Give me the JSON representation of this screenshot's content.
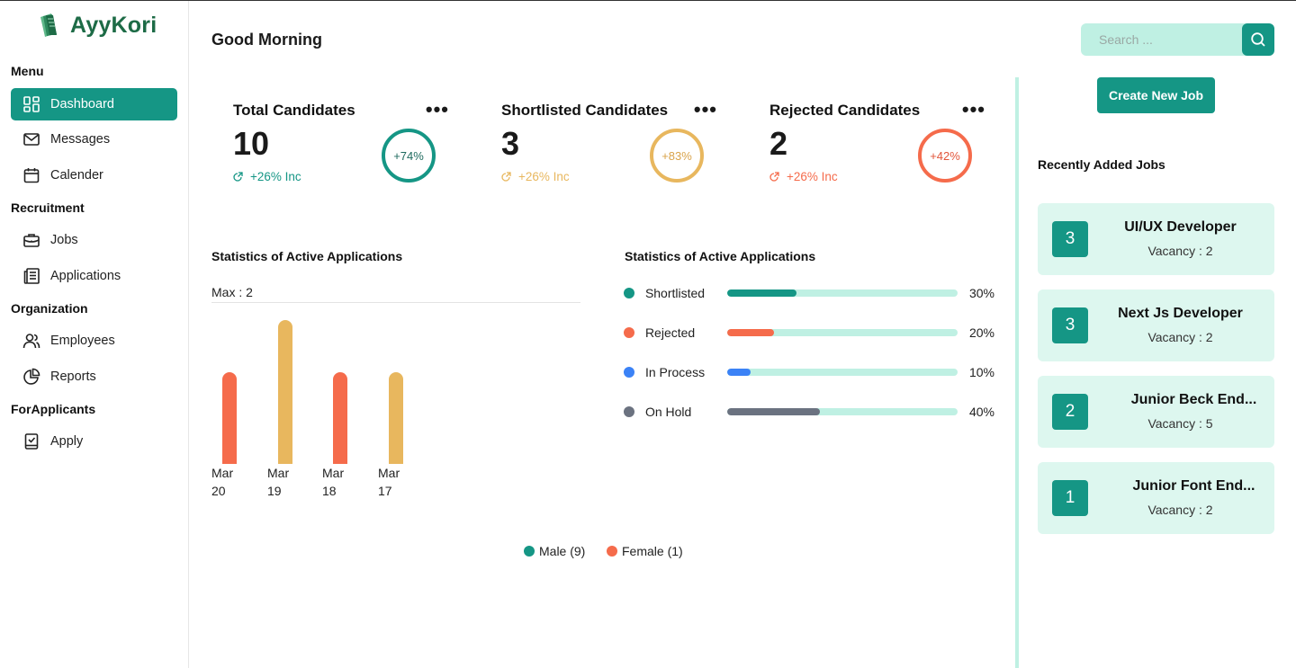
{
  "brand": {
    "name": "AyyKori"
  },
  "sidebar": {
    "sections": [
      {
        "title": "Menu"
      },
      {
        "title": "Recruitment"
      },
      {
        "title": "Organization"
      },
      {
        "title": "ForApplicants"
      }
    ],
    "items": [
      {
        "label": "Dashboard",
        "icon": "dashboard-icon",
        "active": true
      },
      {
        "label": "Messages",
        "icon": "mail-icon"
      },
      {
        "label": "Calender",
        "icon": "calendar-icon"
      },
      {
        "label": "Jobs",
        "icon": "briefcase-icon"
      },
      {
        "label": "Applications",
        "icon": "document-icon"
      },
      {
        "label": "Employees",
        "icon": "users-icon"
      },
      {
        "label": "Reports",
        "icon": "pie-chart-icon"
      },
      {
        "label": "Apply",
        "icon": "checkbook-icon"
      }
    ]
  },
  "header": {
    "greeting": "Good Morning",
    "search_placeholder": "Search ..."
  },
  "stats": [
    {
      "title": "Total Candidates",
      "value": "10",
      "inc": "+26% Inc",
      "ring": "+74%",
      "color": "#159685"
    },
    {
      "title": "Shortlisted Candidates",
      "value": "3",
      "inc": "+26% Inc",
      "ring": "+83%",
      "color": "#e8b75e"
    },
    {
      "title": "Rejected Candidates",
      "value": "2",
      "inc": "+26% Inc",
      "ring": "+42%",
      "color": "#f56b4b"
    }
  ],
  "gender_chart": {
    "title": "Statistics of Active Applications",
    "max_label": "Max : 2",
    "legend": [
      {
        "label": "Male (9)",
        "color": "#159685"
      },
      {
        "label": "Female (1)",
        "color": "#f56b4b"
      }
    ]
  },
  "status_chart": {
    "title": "Statistics of Active Applications",
    "rows": [
      {
        "label": "Shortlisted",
        "percent_label": "30%",
        "color": "#159685"
      },
      {
        "label": "Rejected",
        "percent_label": "20%",
        "color": "#f56b4b"
      },
      {
        "label": "In Process",
        "percent_label": "10%",
        "color": "#3b82f6"
      },
      {
        "label": "On Hold",
        "percent_label": "40%",
        "color": "#6b7280"
      }
    ]
  },
  "chart_data": [
    {
      "type": "bar",
      "title": "Statistics of Active Applications",
      "categories": [
        "Mar 20",
        "Mar 19",
        "Mar 18",
        "Mar 17"
      ],
      "values": [
        1.28,
        2.0,
        1.28,
        1.28
      ],
      "colors": [
        "#f56b4b",
        "#e8b75e",
        "#f56b4b",
        "#e8b75e"
      ],
      "ylim": [
        0,
        2
      ]
    },
    {
      "type": "bar",
      "title": "Statistics of Active Applications",
      "categories": [
        "Shortlisted",
        "Rejected",
        "In Process",
        "On Hold"
      ],
      "values": [
        30,
        20,
        10,
        40
      ],
      "ylim": [
        0,
        100
      ]
    }
  ],
  "right_panel": {
    "create_label": "Create New Job",
    "recent_title": "Recently Added Jobs",
    "jobs": [
      {
        "count": "3",
        "title": "UI/UX Developer",
        "vacancy": "Vacancy : 2"
      },
      {
        "count": "3",
        "title": "Next Js Developer",
        "vacancy": "Vacancy : 2"
      },
      {
        "count": "2",
        "title": "Junior Beck End...",
        "vacancy": "Vacancy : 5"
      },
      {
        "count": "1",
        "title": "Junior Font End...",
        "vacancy": "Vacancy : 2"
      }
    ]
  },
  "colors": {
    "primary": "#159685",
    "mint": "#bff0e3",
    "card": "#ddf7ef"
  }
}
